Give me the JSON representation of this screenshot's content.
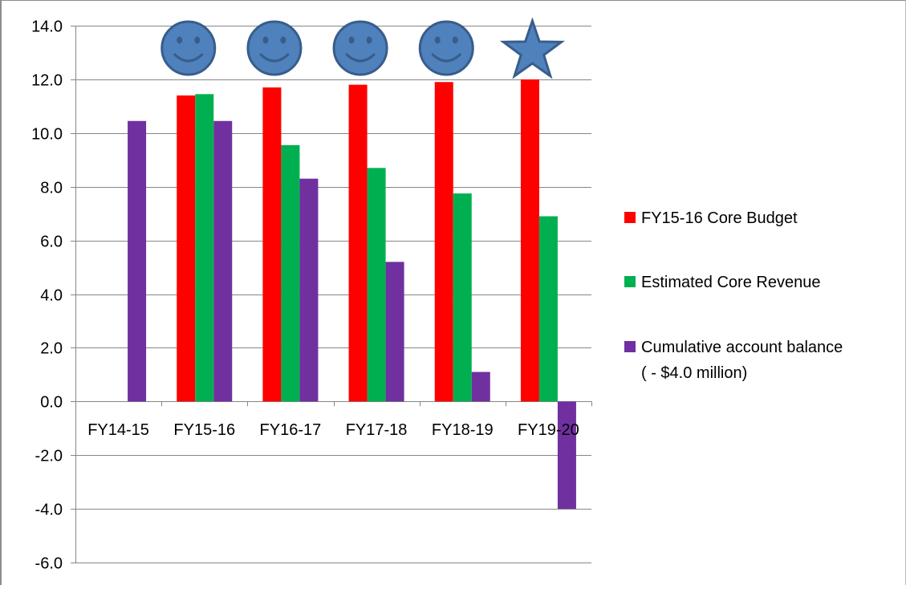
{
  "chart_data": {
    "type": "bar",
    "title": "",
    "xlabel": "",
    "ylabel": "",
    "ylim": [
      -6.0,
      14.0
    ],
    "ytick_step": 2.0,
    "grid": true,
    "legend_position": "right",
    "categories": [
      "FY14-15",
      "FY15-16",
      "FY16-17",
      "FY17-18",
      "FY18-19",
      "FY19-20"
    ],
    "series": [
      {
        "name": "FY15-16 Core Budget",
        "color": "#FF0000",
        "values": [
          null,
          11.4,
          11.7,
          11.8,
          11.9,
          12.0
        ]
      },
      {
        "name": "Estimated Core Revenue",
        "color": "#00B050",
        "values": [
          null,
          11.45,
          9.55,
          8.7,
          7.75,
          6.9
        ]
      },
      {
        "name": "Cumulative account balance",
        "name_line2": "( - $4.0 million)",
        "color": "#7030A0",
        "values": [
          10.45,
          10.45,
          8.3,
          5.2,
          1.1,
          -4.0
        ]
      }
    ],
    "annotations": [
      {
        "category": "FY15-16",
        "icon": "smiley-face-icon"
      },
      {
        "category": "FY16-17",
        "icon": "smiley-face-icon"
      },
      {
        "category": "FY17-18",
        "icon": "smiley-face-icon"
      },
      {
        "category": "FY18-19",
        "icon": "smiley-face-icon"
      },
      {
        "category": "FY19-20",
        "icon": "star-icon"
      }
    ],
    "annotation_color": "#4F81BD",
    "annotation_border": "#385D8A"
  }
}
